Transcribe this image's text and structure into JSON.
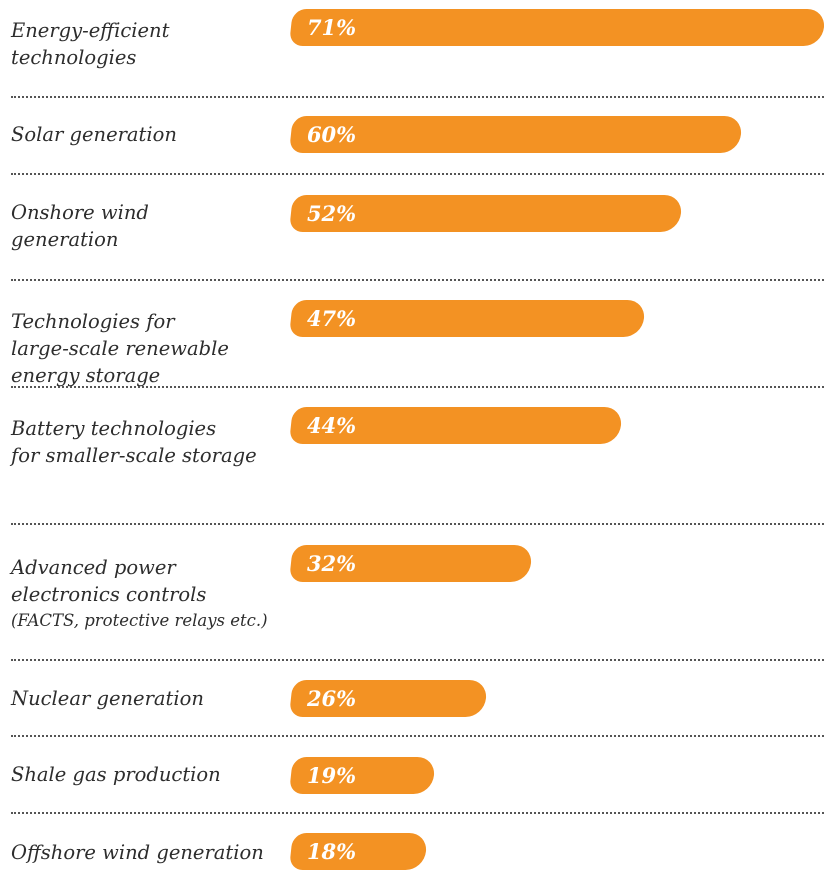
{
  "chart_data": {
    "type": "bar",
    "orientation": "horizontal",
    "categories": [
      [
        "Energy-efficient",
        "technologies"
      ],
      [
        "Solar generation"
      ],
      [
        "Onshore wind",
        "generation"
      ],
      [
        "Technologies for",
        "large-scale renewable",
        "energy storage"
      ],
      [
        "Battery technologies",
        "for smaller-scale storage"
      ],
      [
        "Advanced power",
        "electronics controls",
        "(FACTS, protective relays etc.)"
      ],
      [
        "Nuclear generation"
      ],
      [
        "Shale gas production"
      ],
      [
        "Offshore wind generation"
      ]
    ],
    "values": [
      71,
      60,
      52,
      47,
      44,
      32,
      26,
      19,
      18
    ],
    "value_labels": [
      "71%",
      "60%",
      "52%",
      "47%",
      "44%",
      "32%",
      "26%",
      "19%",
      "18%"
    ],
    "xlim": [
      0,
      71
    ],
    "bar_color": "#f39223",
    "value_label_color": "#ffffff",
    "divider_style": "dotted"
  }
}
